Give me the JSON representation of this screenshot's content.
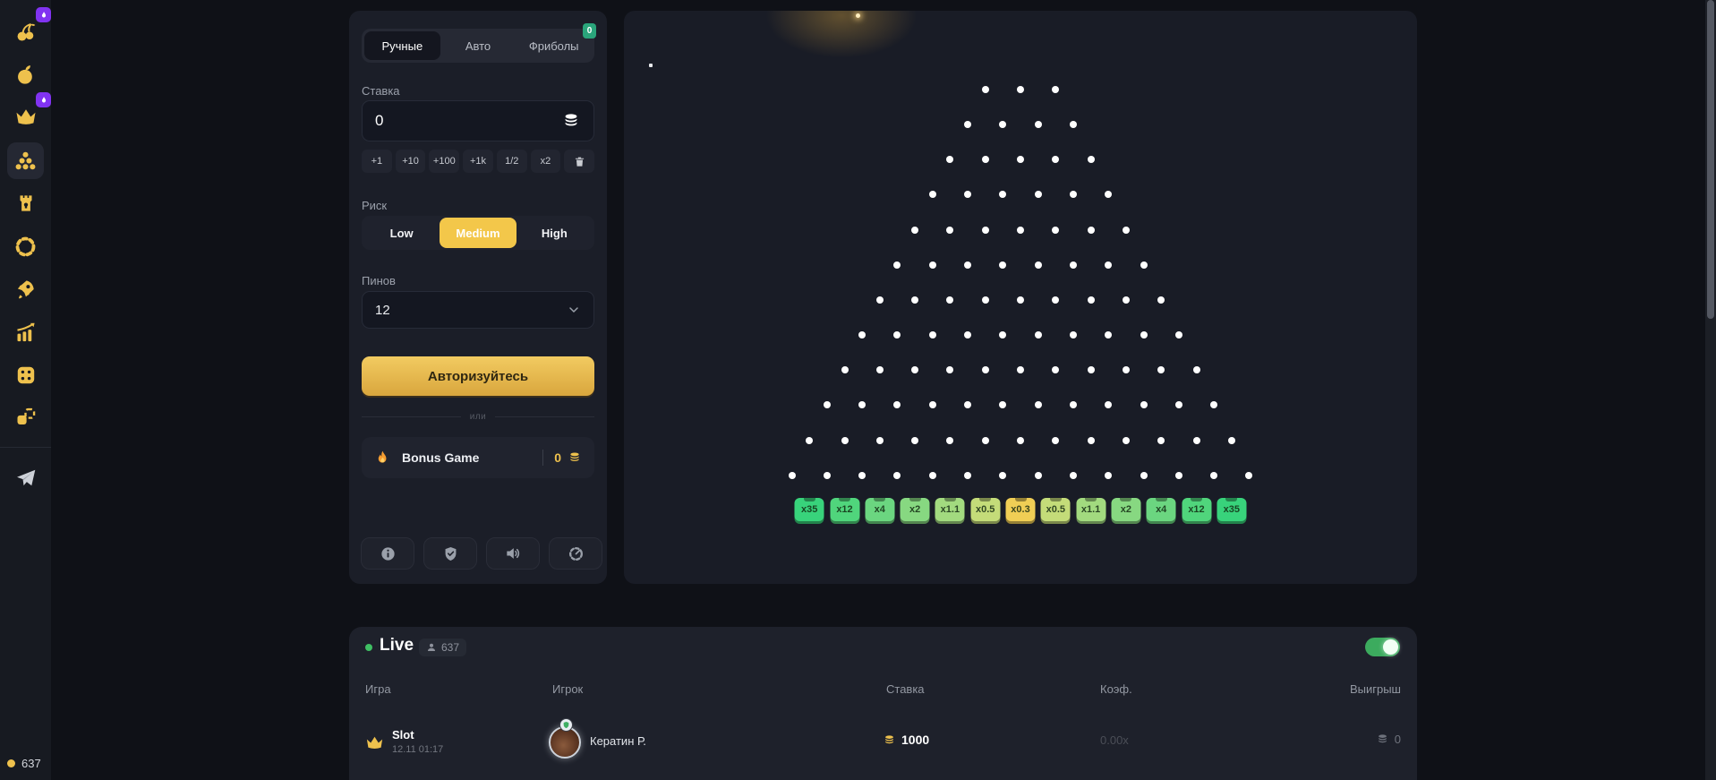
{
  "colors": {
    "accent_gold": "#eec14d",
    "badge_purple": "#8133f1",
    "badge_green": "#2aa57b",
    "toggle_green": "#3cab5e",
    "live_dot_green": "#3fbf63",
    "auth_gradient_top": "#f2cb61",
    "auth_gradient_bottom": "#d9a63d"
  },
  "sidebar": {
    "items": [
      {
        "icon": "cherries-icon",
        "badge": "flame"
      },
      {
        "icon": "fruit-icon"
      },
      {
        "icon": "crown-icon",
        "badge": "flame"
      },
      {
        "icon": "plinko-icon",
        "active": true
      },
      {
        "icon": "tower-icon"
      },
      {
        "icon": "wheel-icon"
      },
      {
        "icon": "rocket-icon"
      },
      {
        "icon": "chart-icon"
      },
      {
        "icon": "dice-icon"
      },
      {
        "icon": "coinflip-icon"
      },
      {
        "icon": "telegram-icon"
      }
    ],
    "online_count": "637"
  },
  "panel": {
    "tabs": [
      {
        "label": "Ручные",
        "active": true
      },
      {
        "label": "Авто"
      },
      {
        "label": "Фриболы",
        "badge": "0"
      }
    ],
    "bet": {
      "label": "Ставка",
      "value": "0"
    },
    "quick_buttons": [
      "+1",
      "+10",
      "+100",
      "+1k",
      "1/2",
      "x2"
    ],
    "risk": {
      "label": "Риск",
      "options": [
        "Low",
        "Medium",
        "High"
      ],
      "selected": "Medium"
    },
    "pins": {
      "label": "Пинов",
      "value": "12"
    },
    "auth_button_label": "Авторизуйтесь",
    "divider_label": "или",
    "bonus": {
      "label": "Bonus Game",
      "value": "0"
    },
    "footer_icons": [
      "info-icon",
      "shield-check-icon",
      "sound-icon",
      "speed-gauge-icon"
    ]
  },
  "board": {
    "rows": 12,
    "top_pegs": 3,
    "multipliers": [
      {
        "label": "x35",
        "color": "#38d37b"
      },
      {
        "label": "x12",
        "color": "#50d57c"
      },
      {
        "label": "x4",
        "color": "#6bd680"
      },
      {
        "label": "x2",
        "color": "#87d881"
      },
      {
        "label": "x1.1",
        "color": "#a2da7f"
      },
      {
        "label": "x0.5",
        "color": "#c4dc79"
      },
      {
        "label": "x0.3",
        "color": "#f0ce55"
      },
      {
        "label": "x0.5",
        "color": "#c4dc79"
      },
      {
        "label": "x1.1",
        "color": "#a2da7f"
      },
      {
        "label": "x2",
        "color": "#87d881"
      },
      {
        "label": "x4",
        "color": "#6bd680"
      },
      {
        "label": "x12",
        "color": "#50d57c"
      },
      {
        "label": "x35",
        "color": "#38d37b"
      }
    ]
  },
  "live": {
    "title": "Live",
    "online_count": "637",
    "toggle_on": true,
    "columns": [
      "Игра",
      "Игрок",
      "Ставка",
      "Коэф.",
      "Выигрыш"
    ],
    "rows": [
      {
        "game": "Slot",
        "datetime": "12.11 01:17",
        "player": "Кератин Р.",
        "bet": "1000",
        "coef": "0.00x",
        "win": "0"
      }
    ]
  }
}
